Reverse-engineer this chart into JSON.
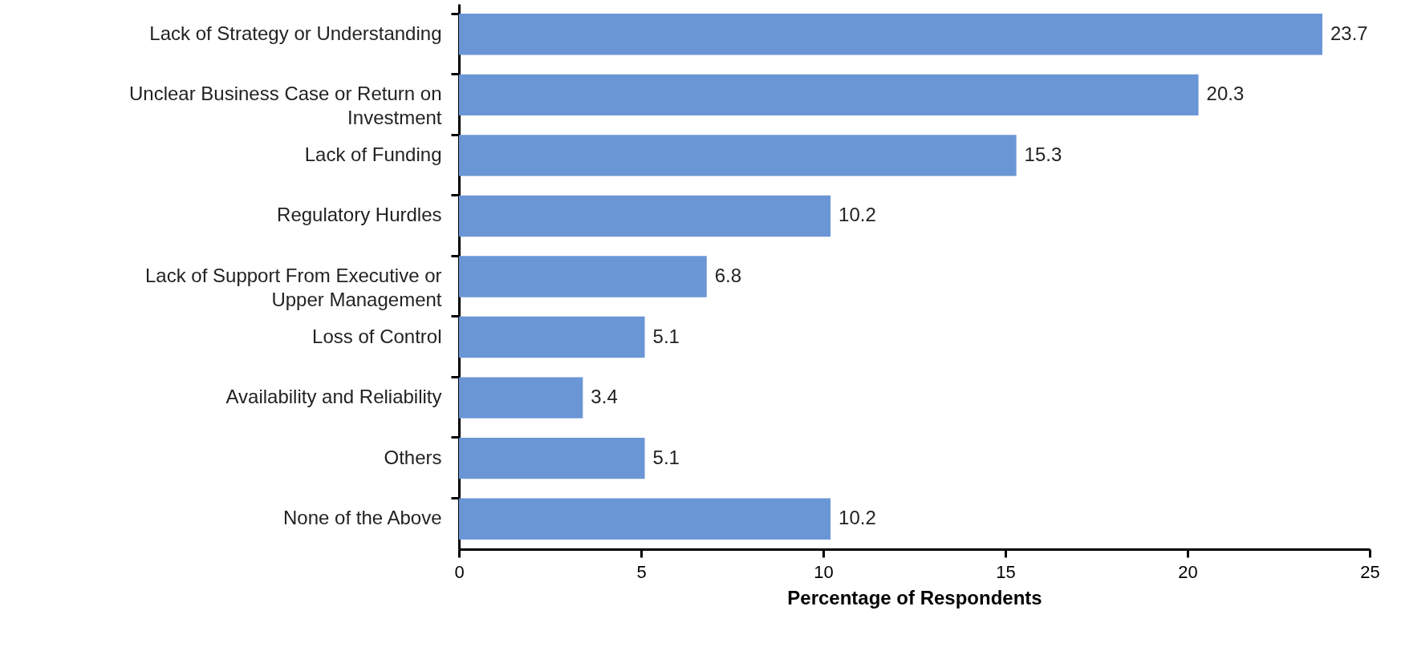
{
  "chart_data": {
    "type": "bar",
    "orientation": "horizontal",
    "xlabel": "Percentage of Respondents",
    "categories": [
      "Lack of Strategy or Understanding",
      "Unclear Business Case or Return on Investment",
      "Lack of Funding",
      "Regulatory Hurdles",
      "Lack of Support From Executive or Upper Management",
      "Loss of Control",
      "Availability and Reliability",
      "Others",
      "None of the Above"
    ],
    "values": [
      23.7,
      20.3,
      15.3,
      10.2,
      6.8,
      5.1,
      3.4,
      5.1,
      10.2
    ],
    "color": "#6b96d6",
    "xlim": [
      0,
      25
    ],
    "xticks": [
      0,
      5,
      10,
      15,
      20,
      25
    ],
    "grid": false,
    "data_labels": true
  }
}
